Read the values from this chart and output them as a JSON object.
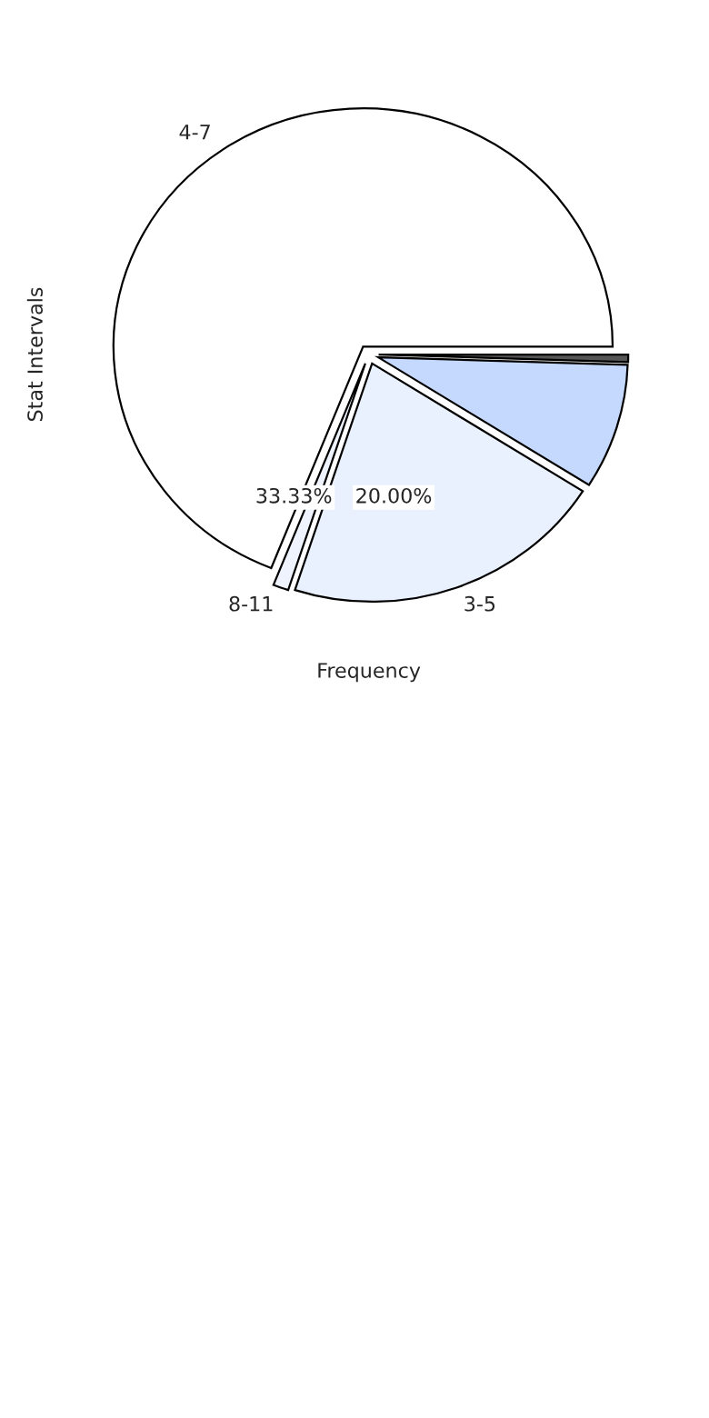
{
  "chart_data": {
    "type": "pie",
    "xlabel": "Frequency",
    "ylabel": "Stat Intervals",
    "categories": [
      "4-7",
      "8-11",
      "3-5",
      null,
      null
    ],
    "values": [
      69,
      1,
      21,
      8.5,
      0.5
    ],
    "colors": [
      "#ffffff",
      "#eef3fd",
      "#eaf1fe",
      "#c5d8fe",
      "#555555"
    ],
    "annotations": [
      "33.33%",
      "20.00%"
    ]
  }
}
